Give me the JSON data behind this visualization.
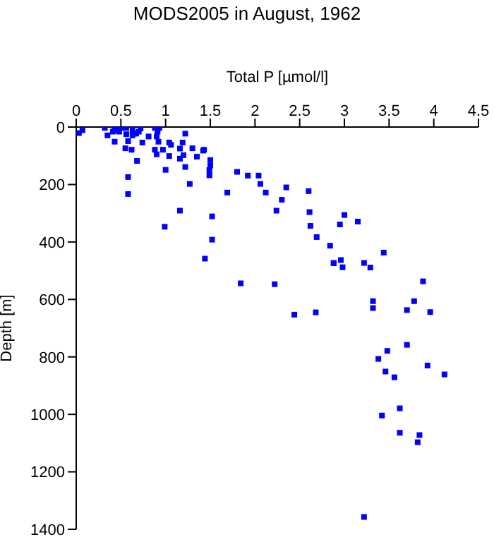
{
  "chart_data": {
    "type": "scatter",
    "title": "MODS2005 in August, 1962",
    "xlabel": "Total P [µmol/l]",
    "ylabel": "Depth [m]",
    "x": [
      0.03,
      0.07,
      0.32,
      0.35,
      0.41,
      0.43,
      0.46,
      0.48,
      0.5,
      0.43,
      0.56,
      0.56,
      0.58,
      0.55,
      0.63,
      0.63,
      0.62,
      0.67,
      0.7,
      0.72,
      0.74,
      0.68,
      0.58,
      0.58,
      0.81,
      0.88,
      0.91,
      0.93,
      0.9,
      0.92,
      0.88,
      0.9,
      0.97,
      1.04,
      1.06,
      1.04,
      1.0,
      0.99,
      1.19,
      1.22,
      1.16,
      1.2,
      1.16,
      1.22,
      1.16,
      1.3,
      1.35,
      1.42,
      1.43,
      1.5,
      1.5,
      1.49,
      1.49,
      1.27,
      1.69,
      1.8,
      1.92,
      2.04,
      2.06,
      2.12,
      2.3,
      2.24,
      1.52,
      1.52,
      1.44,
      1.84,
      2.22,
      2.44,
      2.68,
      2.88,
      2.35,
      2.6,
      2.61,
      3.0,
      3.15,
      2.95,
      2.62,
      2.69,
      2.84,
      3.44,
      2.96,
      2.88,
      3.22,
      2.98,
      3.29,
      3.88,
      3.32,
      3.78,
      3.32,
      3.7,
      3.96,
      3.7,
      3.48,
      3.38,
      3.93,
      3.46,
      3.56,
      4.12,
      3.62,
      3.42,
      3.62,
      3.84,
      3.82,
      3.22
    ],
    "values": [
      21,
      11,
      3,
      29,
      16,
      10,
      7,
      16,
      3,
      51,
      3,
      25,
      49,
      74,
      10,
      29,
      79,
      23,
      16,
      5,
      54,
      118,
      174,
      233,
      33,
      3,
      16,
      3,
      33,
      51,
      79,
      95,
      79,
      54,
      62,
      101,
      149,
      347,
      54,
      23,
      75,
      98,
      110,
      139,
      291,
      74,
      103,
      82,
      79,
      115,
      134,
      150,
      168,
      198,
      228,
      156,
      169,
      169,
      198,
      228,
      253,
      291,
      311,
      392,
      458,
      544,
      547,
      653,
      645,
      473,
      210,
      223,
      296,
      306,
      329,
      339,
      344,
      383,
      413,
      437,
      463,
      474,
      473,
      488,
      489,
      537,
      606,
      606,
      630,
      637,
      644,
      758,
      779,
      807,
      830,
      851,
      871,
      861,
      979,
      1004,
      1064,
      1072,
      1097,
      1357
    ],
    "color": "#0000ff",
    "marker": "square",
    "xlim": [
      0,
      4.5
    ],
    "xticks": [
      0,
      0.5,
      1,
      1.5,
      2,
      2.5,
      3,
      3.5,
      4,
      4.5
    ],
    "ylim": [
      1400,
      0
    ],
    "yticks": [
      0,
      200,
      400,
      600,
      800,
      1000,
      1200,
      1400
    ],
    "grid": false,
    "legend": false
  }
}
